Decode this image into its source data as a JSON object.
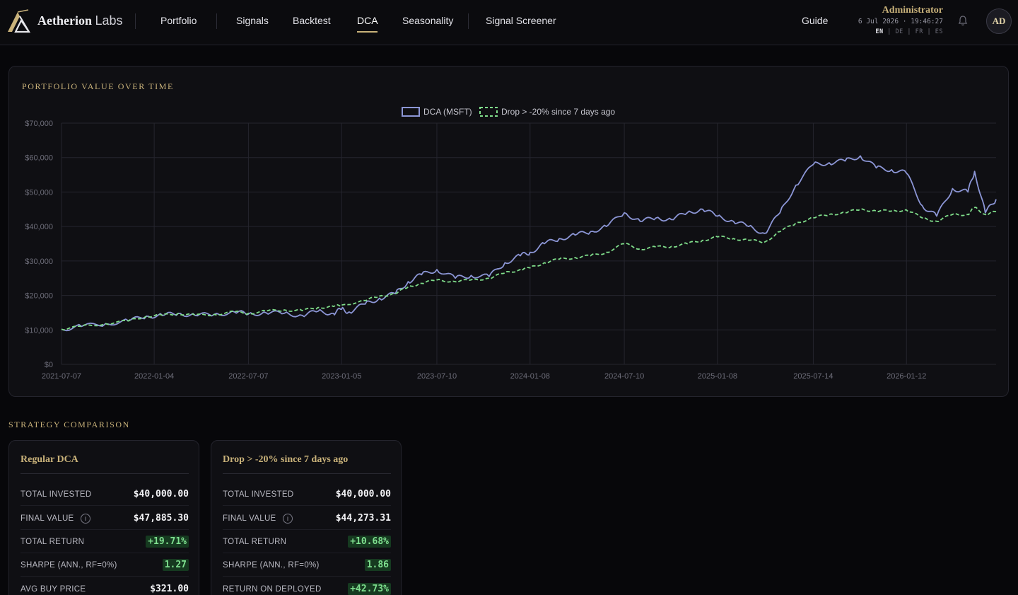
{
  "nav": {
    "brand_bold": "Aetherion",
    "brand_light": "Labs",
    "links": [
      "Portfolio",
      "Signals",
      "Backtest",
      "DCA",
      "Seasonality",
      "Signal Screener"
    ],
    "active": "DCA",
    "guide": "Guide",
    "user_name": "Administrator",
    "clock": "6 Jul 2026 · 19:46:27",
    "langs": [
      "EN",
      "DE",
      "FR",
      "ES"
    ],
    "active_lang": "EN",
    "avatar_initials": "AD",
    "icons": [
      "aetherion-logo-icon",
      "bell-icon"
    ]
  },
  "chart_section": {
    "title": "PORTFOLIO VALUE OVER TIME"
  },
  "chart_data": {
    "type": "line",
    "title": "PORTFOLIO VALUE OVER TIME",
    "xlabel": "",
    "ylabel": "",
    "y_ticks": [
      "$0",
      "$10,000",
      "$20,000",
      "$30,000",
      "$40,000",
      "$50,000",
      "$60,000",
      "$70,000"
    ],
    "ylim": [
      0,
      70000
    ],
    "x_ticks": [
      "2021-07-07",
      "2022-01-04",
      "2022-07-07",
      "2023-01-05",
      "2023-07-10",
      "2024-01-08",
      "2024-07-10",
      "2025-01-08",
      "2025-07-14",
      "2026-01-12"
    ],
    "xlim": [
      "2021-07-07",
      "2026-07-06"
    ],
    "grid": true,
    "legend": "top-center",
    "series": [
      {
        "name": "DCA (MSFT)",
        "color": "#8c96d6",
        "style": "solid",
        "points": [
          [
            "2021-07-07",
            10200
          ],
          [
            "2021-08-15",
            11000
          ],
          [
            "2021-10-01",
            11800
          ],
          [
            "2021-11-15",
            12600
          ],
          [
            "2021-12-20",
            14000
          ],
          [
            "2022-01-20",
            14200
          ],
          [
            "2022-02-20",
            14800
          ],
          [
            "2022-03-25",
            14200
          ],
          [
            "2022-05-01",
            14500
          ],
          [
            "2022-06-10",
            15200
          ],
          [
            "2022-07-07",
            14600
          ],
          [
            "2022-08-10",
            15000
          ],
          [
            "2022-09-15",
            14800
          ],
          [
            "2022-10-20",
            14200
          ],
          [
            "2022-11-20",
            15400
          ],
          [
            "2022-12-20",
            14800
          ],
          [
            "2023-01-05",
            16000
          ],
          [
            "2023-01-20",
            15200
          ],
          [
            "2023-02-20",
            17500
          ],
          [
            "2023-03-20",
            19200
          ],
          [
            "2023-04-20",
            20500
          ],
          [
            "2023-05-15",
            24000
          ],
          [
            "2023-06-10",
            26000
          ],
          [
            "2023-07-10",
            27500
          ],
          [
            "2023-08-15",
            25000
          ],
          [
            "2023-09-15",
            25800
          ],
          [
            "2023-10-20",
            25500
          ],
          [
            "2023-11-20",
            29500
          ],
          [
            "2023-12-20",
            31500
          ],
          [
            "2024-01-08",
            32500
          ],
          [
            "2024-02-05",
            35000
          ],
          [
            "2024-03-05",
            36500
          ],
          [
            "2024-04-05",
            37500
          ],
          [
            "2024-05-05",
            38500
          ],
          [
            "2024-06-05",
            40000
          ],
          [
            "2024-07-10",
            44000
          ],
          [
            "2024-08-10",
            41500
          ],
          [
            "2024-09-10",
            42500
          ],
          [
            "2024-10-10",
            42000
          ],
          [
            "2024-11-10",
            44000
          ],
          [
            "2024-12-10",
            45000
          ],
          [
            "2025-01-08",
            43000
          ],
          [
            "2025-02-08",
            41500
          ],
          [
            "2025-03-10",
            40000
          ],
          [
            "2025-04-10",
            38000
          ],
          [
            "2025-05-10",
            44000
          ],
          [
            "2025-06-10",
            52000
          ],
          [
            "2025-07-14",
            58000
          ],
          [
            "2025-08-14",
            58500
          ],
          [
            "2025-09-14",
            59000
          ],
          [
            "2025-10-14",
            60500
          ],
          [
            "2025-11-14",
            57000
          ],
          [
            "2025-12-14",
            56500
          ],
          [
            "2026-01-12",
            55500
          ],
          [
            "2026-02-12",
            46000
          ],
          [
            "2026-03-12",
            43000
          ],
          [
            "2026-04-12",
            51000
          ],
          [
            "2026-05-12",
            50000
          ],
          [
            "2026-05-25",
            56000
          ],
          [
            "2026-06-15",
            44000
          ],
          [
            "2026-07-06",
            47885
          ]
        ]
      },
      {
        "name": "Drop > -20% since 7 days ago",
        "color": "#7fdc8a",
        "style": "dashed",
        "points": [
          [
            "2021-07-07",
            10200
          ],
          [
            "2021-08-15",
            11000
          ],
          [
            "2021-10-01",
            11800
          ],
          [
            "2021-11-15",
            12600
          ],
          [
            "2021-12-20",
            14000
          ],
          [
            "2022-01-20",
            14200
          ],
          [
            "2022-02-20",
            14800
          ],
          [
            "2022-03-25",
            14200
          ],
          [
            "2022-05-01",
            14500
          ],
          [
            "2022-06-10",
            15200
          ],
          [
            "2022-07-07",
            14800
          ],
          [
            "2022-08-10",
            15400
          ],
          [
            "2022-09-15",
            15800
          ],
          [
            "2022-10-20",
            15600
          ],
          [
            "2022-11-20",
            16500
          ],
          [
            "2022-12-20",
            16800
          ],
          [
            "2023-01-05",
            17200
          ],
          [
            "2023-02-20",
            18500
          ],
          [
            "2023-03-20",
            19800
          ],
          [
            "2023-04-20",
            20500
          ],
          [
            "2023-05-15",
            22500
          ],
          [
            "2023-06-10",
            23500
          ],
          [
            "2023-07-10",
            24500
          ],
          [
            "2023-08-15",
            24000
          ],
          [
            "2023-09-15",
            24500
          ],
          [
            "2023-10-20",
            25000
          ],
          [
            "2023-11-20",
            26500
          ],
          [
            "2023-12-20",
            27500
          ],
          [
            "2024-01-08",
            28000
          ],
          [
            "2024-02-05",
            29500
          ],
          [
            "2024-03-05",
            30500
          ],
          [
            "2024-04-05",
            31000
          ],
          [
            "2024-05-05",
            31500
          ],
          [
            "2024-06-05",
            32500
          ],
          [
            "2024-07-10",
            35000
          ],
          [
            "2024-08-10",
            33500
          ],
          [
            "2024-09-10",
            34000
          ],
          [
            "2024-10-10",
            34200
          ],
          [
            "2024-11-10",
            35000
          ],
          [
            "2024-12-10",
            36000
          ],
          [
            "2025-01-08",
            37000
          ],
          [
            "2025-02-08",
            36500
          ],
          [
            "2025-03-10",
            36000
          ],
          [
            "2025-04-10",
            35500
          ],
          [
            "2025-05-10",
            38500
          ],
          [
            "2025-06-10",
            41000
          ],
          [
            "2025-07-14",
            42500
          ],
          [
            "2025-08-14",
            43500
          ],
          [
            "2025-09-14",
            44000
          ],
          [
            "2025-10-14",
            45000
          ],
          [
            "2025-11-14",
            44500
          ],
          [
            "2025-12-14",
            44500
          ],
          [
            "2026-01-12",
            44800
          ],
          [
            "2026-02-12",
            42500
          ],
          [
            "2026-03-12",
            41500
          ],
          [
            "2026-04-12",
            43500
          ],
          [
            "2026-05-12",
            43500
          ],
          [
            "2026-05-25",
            45500
          ],
          [
            "2026-06-15",
            43500
          ],
          [
            "2026-07-06",
            44273
          ]
        ]
      }
    ]
  },
  "strategy": {
    "title": "STRATEGY COMPARISON",
    "cards": [
      {
        "name": "Regular DCA",
        "rows": [
          {
            "label": "TOTAL INVESTED",
            "value": "$40,000.00",
            "positive": false,
            "info": false
          },
          {
            "label": "FINAL VALUE",
            "value": "$47,885.30",
            "positive": false,
            "info": true
          },
          {
            "label": "TOTAL RETURN",
            "value": "+19.71%",
            "positive": true,
            "info": false
          },
          {
            "label": "SHARPE (ANN., RF=0%)",
            "value": "1.27",
            "positive": true,
            "info": false
          },
          {
            "label": "AVG BUY PRICE",
            "value": "$321.00",
            "positive": false,
            "info": false
          }
        ]
      },
      {
        "name": "Drop > -20% since 7 days ago",
        "rows": [
          {
            "label": "TOTAL INVESTED",
            "value": "$40,000.00",
            "positive": false,
            "info": false
          },
          {
            "label": "FINAL VALUE",
            "value": "$44,273.31",
            "positive": false,
            "info": true
          },
          {
            "label": "TOTAL RETURN",
            "value": "+10.68%",
            "positive": true,
            "info": false
          },
          {
            "label": "SHARPE (ANN., RF=0%)",
            "value": "1.86",
            "positive": true,
            "info": false
          },
          {
            "label": "RETURN ON DEPLOYED",
            "value": "+42.73%",
            "positive": true,
            "info": false
          }
        ]
      }
    ],
    "info_glyph": "i"
  }
}
